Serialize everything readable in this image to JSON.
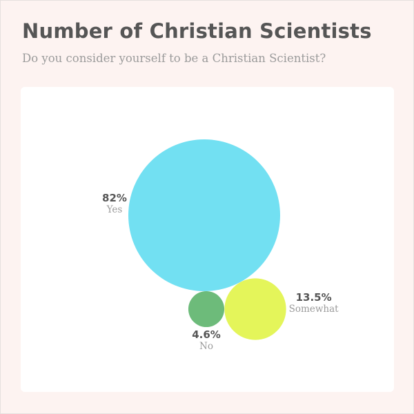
{
  "chart_data": {
    "type": "bubble",
    "title": "Number of Christian Scientists",
    "subtitle": "Do you consider yourself to be a Christian Scientist?",
    "series": [
      {
        "category": "Yes",
        "value": 82,
        "label": "82%",
        "color": "#72e0f2"
      },
      {
        "category": "Somewhat",
        "value": 13.5,
        "label": "13.5%",
        "color": "#e4f55a"
      },
      {
        "category": "No",
        "value": 4.6,
        "label": "4.6%",
        "color": "#6dbb7a"
      }
    ]
  }
}
